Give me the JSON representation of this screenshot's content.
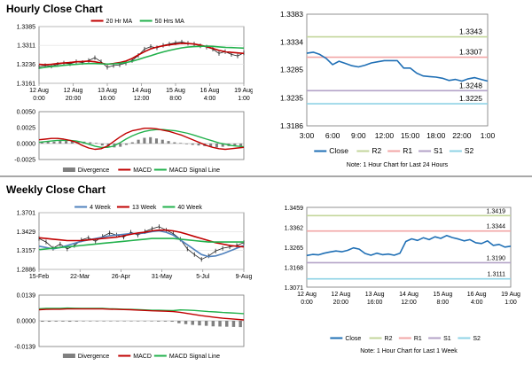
{
  "sections": {
    "hourly_title": "Hourly Close Chart",
    "weekly_title": "Weekly Close Chart"
  },
  "colors": {
    "divider": "#a8a8a8",
    "ma_short": "#c00000",
    "ma_long": "#22b14c",
    "ma_4wk": "#4f81bd",
    "price": "#1f1f1f",
    "close_line": "#1f6fb5",
    "r2": "#c3d69b",
    "r1": "#f2a6a6",
    "s1": "#b3a2c7",
    "s2": "#8fd3e6",
    "divergence": "#808080",
    "macd": "#c00000",
    "signal": "#22b14c"
  },
  "chart_data": [
    {
      "id": "hourly_price",
      "type": "line",
      "x_ticks": [
        "12 Aug|0:00",
        "12 Aug|20:00",
        "13 Aug|16:00",
        "14 Aug|12:00",
        "15 Aug|8:00",
        "16 Aug|4:00",
        "19 Aug|1:00"
      ],
      "y_ticks": [
        "1.3385",
        "1.3311",
        "1.3236",
        "1.3161"
      ],
      "ylim": [
        1.3161,
        1.3385
      ],
      "legend": [
        "20 Hr MA",
        "50 Hrs MA"
      ],
      "series": [
        {
          "name": "Price",
          "values": [
            1.3226,
            1.3231,
            1.3229,
            1.3236,
            1.3241,
            1.3238,
            1.3246,
            1.3243,
            1.3251,
            1.3262,
            1.3246,
            1.3224,
            1.3231,
            1.3234,
            1.3241,
            1.3251,
            1.3271,
            1.3296,
            1.3306,
            1.3301,
            1.3311,
            1.3316,
            1.3321,
            1.3324,
            1.3319,
            1.3316,
            1.3309,
            1.3304,
            1.3296,
            1.3279,
            1.3286,
            1.3275,
            1.3269,
            1.3281
          ]
        },
        {
          "name": "20 Hr MA",
          "values": [
            1.3236,
            1.3234,
            1.3236,
            1.3239,
            1.3241,
            1.3243,
            1.3246,
            1.3247,
            1.3249,
            1.3246,
            1.3241,
            1.3236,
            1.3239,
            1.3243,
            1.3249,
            1.3259,
            1.3273,
            1.3286,
            1.3297,
            1.3304,
            1.3309,
            1.3313,
            1.3316,
            1.3319,
            1.3318,
            1.3316,
            1.3312,
            1.3306,
            1.3299,
            1.3291,
            1.3286,
            1.3283,
            1.3281,
            1.3279
          ]
        },
        {
          "name": "50 Hrs MA",
          "values": [
            1.3221,
            1.3224,
            1.3227,
            1.3229,
            1.3232,
            1.3234,
            1.3236,
            1.3238,
            1.3239,
            1.3239,
            1.3238,
            1.3237,
            1.3238,
            1.324,
            1.3243,
            1.3248,
            1.3255,
            1.3263,
            1.327,
            1.3278,
            1.3285,
            1.3291,
            1.3296,
            1.3301,
            1.3304,
            1.3306,
            1.3307,
            1.3308,
            1.3307,
            1.3305,
            1.3303,
            1.3302,
            1.3301,
            1.33
          ]
        }
      ]
    },
    {
      "id": "hourly_macd",
      "type": "bar",
      "y_ticks": [
        "0.0050",
        "0.0025",
        "0.0000",
        "-0.0025"
      ],
      "ylim": [
        -0.0025,
        0.005
      ],
      "legend": [
        "Divergence",
        "MACD",
        "MACD Signal Line"
      ],
      "series": [
        {
          "name": "Divergence",
          "values": [
            0.0002,
            0.0003,
            0.0003,
            0.0004,
            0.0004,
            0.0005,
            0.0004,
            0.0003,
            0.0002,
            0.0001,
            -0.0003,
            -0.0005,
            -0.0006,
            -0.0005,
            -0.0002,
            0.0002,
            0.0006,
            0.0009,
            0.001,
            0.0008,
            0.0006,
            0.0004,
            0.0002,
            0.0001,
            -0.0001,
            -0.0002,
            -0.0003,
            -0.0004,
            -0.0005,
            -0.0006,
            -0.0005,
            -0.0004,
            -0.0003,
            -0.0004
          ]
        },
        {
          "name": "MACD",
          "values": [
            0.0006,
            0.0007,
            0.0008,
            0.0008,
            0.0007,
            0.0005,
            0.0002,
            -0.0003,
            -0.0007,
            -0.0009,
            -0.0008,
            -0.0004,
            0.0003,
            0.001,
            0.0016,
            0.002,
            0.0022,
            0.0024,
            0.0024,
            0.0023,
            0.0021,
            0.0019,
            0.0016,
            0.0013,
            0.0009,
            0.0005,
            0.0001,
            -0.0003,
            -0.0006,
            -0.0008,
            -0.0009,
            -0.0008,
            -0.0007,
            -0.0006
          ]
        },
        {
          "name": "MACD Signal Line",
          "values": [
            0.0002,
            0.0003,
            0.0004,
            0.0005,
            0.0005,
            0.0005,
            0.0004,
            0.0002,
            -0.0001,
            -0.0004,
            -0.0006,
            -0.0006,
            -0.0004,
            0.0001,
            0.0007,
            0.0012,
            0.0016,
            0.0019,
            0.0021,
            0.0022,
            0.0022,
            0.0021,
            0.002,
            0.0018,
            0.0016,
            0.0013,
            0.001,
            0.0007,
            0.0004,
            0.0001,
            -0.0001,
            -0.0003,
            -0.0004,
            -0.0005
          ]
        }
      ]
    },
    {
      "id": "hourly_close",
      "type": "line",
      "x_ticks": [
        "3:00",
        "6:00",
        "9:00",
        "12:00",
        "15:00",
        "18:00",
        "22:00",
        "1:00"
      ],
      "y_ticks": [
        "1.3383",
        "1.3334",
        "1.3285",
        "1.3235",
        "1.3186"
      ],
      "ylim": [
        1.3186,
        1.3383
      ],
      "levels": [
        {
          "name": "R2",
          "value": 1.3343,
          "label": "1.3343"
        },
        {
          "name": "R1",
          "value": 1.3307,
          "label": "1.3307"
        },
        {
          "name": "S1",
          "value": 1.3248,
          "label": "1.3248"
        },
        {
          "name": "S2",
          "value": 1.3225,
          "label": "1.3225"
        }
      ],
      "close": [
        1.3314,
        1.3316,
        1.3312,
        1.3305,
        1.3294,
        1.33,
        1.3296,
        1.3292,
        1.329,
        1.3293,
        1.3297,
        1.3299,
        1.3301,
        1.3301,
        1.3301,
        1.3288,
        1.3288,
        1.3279,
        1.3274,
        1.3273,
        1.3272,
        1.327,
        1.3266,
        1.3268,
        1.3265,
        1.3269,
        1.3271,
        1.3268,
        1.3265
      ],
      "legend": [
        "Close",
        "R2",
        "R1",
        "S1",
        "S2"
      ],
      "note": "Note: 1 Hour Chart for Last 24 Hours"
    },
    {
      "id": "weekly_price",
      "type": "line",
      "x_ticks": [
        "15-Feb",
        "22-Mar",
        "26-Apr",
        "31-May",
        "5-Jul",
        "9-Aug"
      ],
      "y_ticks": [
        "1.3701",
        "1.3429",
        "1.3157",
        "1.2886"
      ],
      "ylim": [
        1.2886,
        1.3701
      ],
      "legend": [
        "4 Week",
        "13 Week",
        "40 Week"
      ],
      "series": [
        {
          "name": "Price",
          "values": [
            1.333,
            1.328,
            1.319,
            1.325,
            1.318,
            1.323,
            1.331,
            1.334,
            1.329,
            1.336,
            1.341,
            1.338,
            1.335,
            1.342,
            1.338,
            1.343,
            1.347,
            1.35,
            1.345,
            1.34,
            1.332,
            1.318,
            1.31,
            1.303,
            1.308,
            1.315,
            1.319,
            1.321,
            1.323,
            1.327
          ]
        },
        {
          "name": "4 Week",
          "values": [
            1.322,
            1.32,
            1.318,
            1.32,
            1.323,
            1.326,
            1.329,
            1.331,
            1.333,
            1.335,
            1.337,
            1.338,
            1.339,
            1.34,
            1.34,
            1.341,
            1.343,
            1.344,
            1.342,
            1.338,
            1.331,
            1.324,
            1.317,
            1.31,
            1.307,
            1.308,
            1.311,
            1.315,
            1.319,
            1.323
          ]
        },
        {
          "name": "13 Week",
          "values": [
            1.334,
            1.333,
            1.332,
            1.331,
            1.33,
            1.33,
            1.33,
            1.331,
            1.332,
            1.333,
            1.334,
            1.335,
            1.337,
            1.339,
            1.341,
            1.342,
            1.344,
            1.345,
            1.345,
            1.344,
            1.342,
            1.339,
            1.336,
            1.333,
            1.33,
            1.327,
            1.325,
            1.323,
            1.322,
            1.321
          ]
        },
        {
          "name": "40 Week",
          "values": [
            1.317,
            1.318,
            1.319,
            1.32,
            1.321,
            1.322,
            1.323,
            1.324,
            1.325,
            1.326,
            1.327,
            1.328,
            1.329,
            1.33,
            1.331,
            1.332,
            1.333,
            1.333,
            1.333,
            1.333,
            1.332,
            1.331,
            1.33,
            1.329,
            1.328,
            1.328,
            1.328,
            1.328,
            1.328,
            1.328
          ]
        }
      ]
    },
    {
      "id": "weekly_macd",
      "type": "bar",
      "y_ticks": [
        "0.0139",
        "0.0000",
        "-0.0139"
      ],
      "ylim": [
        -0.0139,
        0.0139
      ],
      "legend": [
        "Divergence",
        "MACD",
        "MACD Signal Line"
      ],
      "series": [
        {
          "name": "Divergence",
          "values": [
            -0.0005,
            -0.0005,
            -0.0004,
            -0.0004,
            -0.0005,
            -0.0004,
            -0.0003,
            -0.0003,
            -0.0003,
            -0.0003,
            -0.0002,
            -0.0002,
            -0.0002,
            -0.0002,
            -0.0003,
            -0.0003,
            -0.0003,
            -0.0004,
            -0.0004,
            -0.0005,
            -0.0013,
            -0.0018,
            -0.0022,
            -0.0025,
            -0.0027,
            -0.003,
            -0.0031,
            -0.0032,
            -0.0033,
            -0.0034
          ]
        },
        {
          "name": "MACD",
          "values": [
            0.006,
            0.0062,
            0.0063,
            0.0063,
            0.0064,
            0.0064,
            0.0064,
            0.0064,
            0.0064,
            0.0064,
            0.0063,
            0.0062,
            0.0061,
            0.006,
            0.0058,
            0.0056,
            0.0054,
            0.0053,
            0.0052,
            0.005,
            0.0046,
            0.004,
            0.0034,
            0.0028,
            0.0023,
            0.0018,
            0.0014,
            0.0011,
            0.0008,
            0.0005
          ]
        },
        {
          "name": "MACD Signal Line",
          "values": [
            0.0065,
            0.0067,
            0.0067,
            0.0067,
            0.0069,
            0.0068,
            0.0067,
            0.0067,
            0.0067,
            0.0067,
            0.0065,
            0.0064,
            0.0063,
            0.0062,
            0.0061,
            0.0059,
            0.0057,
            0.0057,
            0.0056,
            0.0055,
            0.0059,
            0.0058,
            0.0056,
            0.0053,
            0.005,
            0.0048,
            0.0045,
            0.0043,
            0.0041,
            0.0039
          ]
        }
      ]
    },
    {
      "id": "weekly_close",
      "type": "line",
      "x_ticks": [
        "12 Aug|0:00",
        "12 Aug|20:00",
        "13 Aug|16:00",
        "14 Aug|12:00",
        "15 Aug|8:00",
        "16 Aug|4:00",
        "19 Aug|1:00"
      ],
      "y_ticks": [
        "1.3459",
        "1.3362",
        "1.3265",
        "1.3168",
        "1.3071"
      ],
      "ylim": [
        1.3071,
        1.3459
      ],
      "levels": [
        {
          "name": "R2",
          "value": 1.3419,
          "label": "1.3419"
        },
        {
          "name": "R1",
          "value": 1.3344,
          "label": "1.3344"
        },
        {
          "name": "S1",
          "value": 1.319,
          "label": "1.3190"
        },
        {
          "name": "S2",
          "value": 1.3111,
          "label": "1.3111"
        }
      ],
      "close": [
        1.3225,
        1.323,
        1.3228,
        1.3236,
        1.3242,
        1.3247,
        1.3243,
        1.325,
        1.3262,
        1.3256,
        1.3235,
        1.3226,
        1.3236,
        1.3229,
        1.3232,
        1.3226,
        1.3236,
        1.3293,
        1.3306,
        1.3298,
        1.3311,
        1.3302,
        1.3316,
        1.3308,
        1.3322,
        1.3312,
        1.3305,
        1.3296,
        1.3302,
        1.3287,
        1.3283,
        1.3296,
        1.3274,
        1.3279,
        1.3266,
        1.327
      ],
      "legend": [
        "Close",
        "R2",
        "R1",
        "S1",
        "S2"
      ],
      "note": "Note: 1 Hour Chart for Last 1 Week"
    }
  ]
}
